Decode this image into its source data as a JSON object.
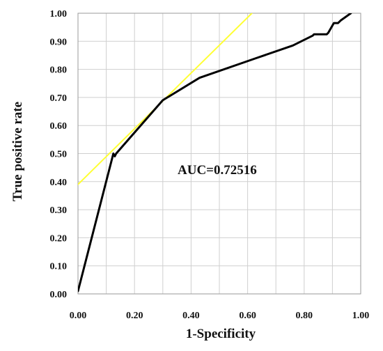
{
  "chart_data": {
    "type": "line",
    "xlabel": "1-Specificity",
    "ylabel": "True positive rate",
    "xlim": [
      0,
      1
    ],
    "ylim": [
      0,
      1
    ],
    "x_ticks": [
      "0.00",
      "0.20",
      "0.40",
      "0.60",
      "0.80",
      "1.00"
    ],
    "y_ticks": [
      "0.00",
      "0.10",
      "0.20",
      "0.30",
      "0.40",
      "0.50",
      "0.60",
      "0.70",
      "0.80",
      "0.90",
      "1.00"
    ],
    "grid": true,
    "annotation": "AUC=0.72516",
    "series": [
      {
        "color": "#000000",
        "x": [
          0.0,
          0.125,
          0.13,
          0.135,
          0.3,
          0.43,
          0.63,
          0.76,
          0.83,
          0.835,
          0.88,
          0.885,
          0.905,
          0.92,
          0.93,
          0.965
        ],
        "y": [
          0.01,
          0.5,
          0.49,
          0.5,
          0.69,
          0.77,
          0.84,
          0.885,
          0.92,
          0.925,
          0.925,
          0.93,
          0.965,
          0.965,
          0.975,
          1.0
        ]
      },
      {
        "color": "#ffff33",
        "x": [
          0.0,
          0.615
        ],
        "y": [
          0.39,
          1.0
        ]
      }
    ]
  }
}
